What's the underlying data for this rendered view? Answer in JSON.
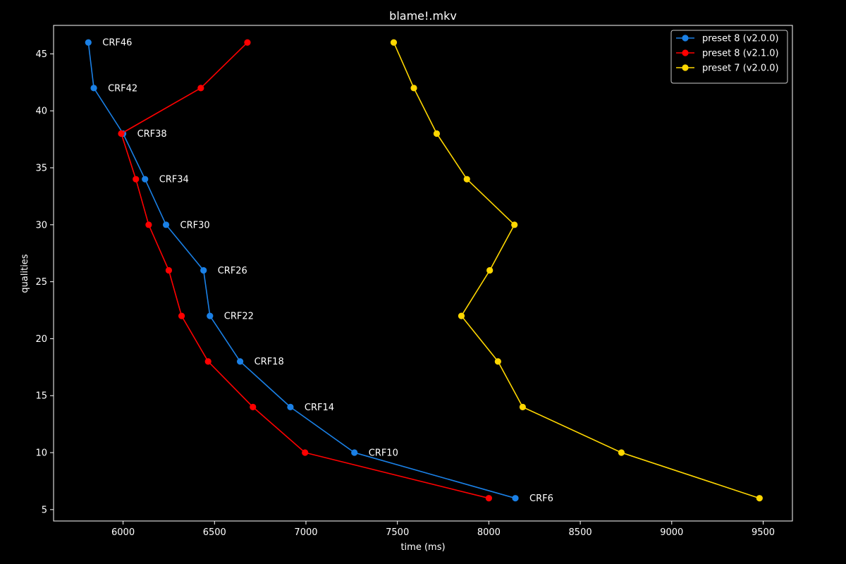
{
  "chart_data": {
    "type": "line",
    "title": "blame!.mkv",
    "xlabel": "time (ms)",
    "ylabel": "qualities",
    "xlim": [
      5620,
      9660
    ],
    "ylim": [
      4,
      47.5
    ],
    "xticks": [
      6000,
      6500,
      7000,
      7500,
      8000,
      8500,
      9000,
      9500
    ],
    "yticks": [
      5,
      10,
      15,
      20,
      25,
      30,
      35,
      40,
      45
    ],
    "grid": false,
    "legend_position": "top-right",
    "background": "#000000",
    "series": [
      {
        "name": "preset 8 (v2.0.0)",
        "color": "#1a80e6",
        "points": [
          {
            "x": 5810,
            "y": 46,
            "label": "CRF46"
          },
          {
            "x": 5840,
            "y": 42,
            "label": "CRF42"
          },
          {
            "x": 6000,
            "y": 38,
            "label": "CRF38"
          },
          {
            "x": 6120,
            "y": 34,
            "label": "CRF34"
          },
          {
            "x": 6235,
            "y": 30,
            "label": "CRF30"
          },
          {
            "x": 6440,
            "y": 26,
            "label": "CRF26"
          },
          {
            "x": 6475,
            "y": 22,
            "label": "CRF22"
          },
          {
            "x": 6640,
            "y": 18,
            "label": "CRF18"
          },
          {
            "x": 6915,
            "y": 14,
            "label": "CRF14"
          },
          {
            "x": 7265,
            "y": 10,
            "label": "CRF10"
          },
          {
            "x": 8145,
            "y": 6,
            "label": "CRF6"
          }
        ]
      },
      {
        "name": "preset 8 (v2.1.0)",
        "color": "#ff0000",
        "points": [
          {
            "x": 6680,
            "y": 46
          },
          {
            "x": 6425,
            "y": 42
          },
          {
            "x": 5990,
            "y": 38
          },
          {
            "x": 6070,
            "y": 34
          },
          {
            "x": 6140,
            "y": 30
          },
          {
            "x": 6250,
            "y": 26
          },
          {
            "x": 6320,
            "y": 22
          },
          {
            "x": 6465,
            "y": 18
          },
          {
            "x": 6710,
            "y": 14
          },
          {
            "x": 6995,
            "y": 10
          },
          {
            "x": 8000,
            "y": 6
          }
        ]
      },
      {
        "name": "preset 7 (v2.0.0)",
        "color": "#ffd700",
        "points": [
          {
            "x": 7480,
            "y": 46
          },
          {
            "x": 7590,
            "y": 42
          },
          {
            "x": 7715,
            "y": 38
          },
          {
            "x": 7880,
            "y": 34
          },
          {
            "x": 8140,
            "y": 30
          },
          {
            "x": 8005,
            "y": 26
          },
          {
            "x": 7850,
            "y": 22
          },
          {
            "x": 8050,
            "y": 18
          },
          {
            "x": 8185,
            "y": 14
          },
          {
            "x": 8725,
            "y": 10
          },
          {
            "x": 9480,
            "y": 6
          }
        ]
      }
    ]
  }
}
